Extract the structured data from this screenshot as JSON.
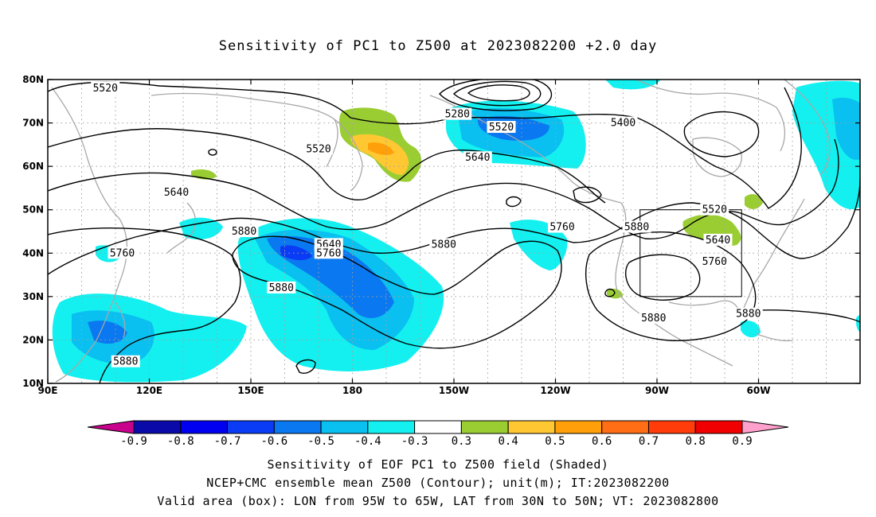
{
  "title": "Sensitivity of PC1 to Z500 at 2023082200 +2.0 day",
  "map": {
    "lon_range": [
      "90E",
      "30W"
    ],
    "lat_range": [
      "10N",
      "80N"
    ],
    "x_ticks": [
      "90E",
      "120E",
      "150E",
      "180",
      "150W",
      "120W",
      "90W",
      "60W"
    ],
    "y_ticks": [
      "10N",
      "20N",
      "30N",
      "40N",
      "50N",
      "60N",
      "70N",
      "80N"
    ],
    "grid": "dotted",
    "contour_color": "#000000",
    "coastline_color": "#a8a8a8",
    "valid_box": {
      "lon": [
        "95W",
        "65W"
      ],
      "lat": [
        "30N",
        "50N"
      ]
    },
    "contour_labels": [
      {
        "text": "5520",
        "lon": 107,
        "lat": 78
      },
      {
        "text": "5280",
        "lon": -149,
        "lat": 72
      },
      {
        "text": "5520",
        "lon": -136,
        "lat": 69
      },
      {
        "text": "5400",
        "lon": -100,
        "lat": 70
      },
      {
        "text": "5520",
        "lon": 170,
        "lat": 64
      },
      {
        "text": "5640",
        "lon": -143,
        "lat": 62
      },
      {
        "text": "5640",
        "lon": 128,
        "lat": 54
      },
      {
        "text": "5520",
        "lon": -73,
        "lat": 50
      },
      {
        "text": "5880",
        "lon": 148,
        "lat": 45
      },
      {
        "text": "5760",
        "lon": -118,
        "lat": 46
      },
      {
        "text": "5880",
        "lon": -96,
        "lat": 46
      },
      {
        "text": "5640",
        "lon": 173,
        "lat": 42
      },
      {
        "text": "5880",
        "lon": -153,
        "lat": 42
      },
      {
        "text": "5640",
        "lon": -72,
        "lat": 43
      },
      {
        "text": "5760",
        "lon": 112,
        "lat": 40
      },
      {
        "text": "5760",
        "lon": 173,
        "lat": 40
      },
      {
        "text": "5760",
        "lon": -73,
        "lat": 38
      },
      {
        "text": "5880",
        "lon": 159,
        "lat": 32
      },
      {
        "text": "5880",
        "lon": -63,
        "lat": 26
      },
      {
        "text": "5880",
        "lon": -91,
        "lat": 25
      },
      {
        "text": "5880",
        "lon": 113,
        "lat": 15
      }
    ]
  },
  "colorbar": {
    "labels": [
      "-0.9",
      "-0.8",
      "-0.7",
      "-0.6",
      "-0.5",
      "-0.4",
      "-0.3",
      "0.3",
      "0.4",
      "0.5",
      "0.6",
      "0.7",
      "0.8",
      "0.9"
    ],
    "colors": [
      "#0a0aa8",
      "#0000f0",
      "#0a3cf5",
      "#0a78f0",
      "#0ac0f0",
      "#14f0f0",
      "#ffffff",
      "#9acd32",
      "#ffc832",
      "#ffa00a",
      "#ff6e14",
      "#ff3c0a",
      "#f00000"
    ],
    "low_end_color": "#c8008c",
    "high_end_color": "#ffa0cc"
  },
  "captions": {
    "line1": "Sensitivity of EOF PC1 to Z500 field (Shaded)",
    "line2": "NCEP+CMC ensemble mean Z500 (Contour); unit(m); IT:2023082200",
    "line3": "Valid area (box): LON from 95W to 65W, LAT from 30N to 50N; VT: 2023082800"
  }
}
